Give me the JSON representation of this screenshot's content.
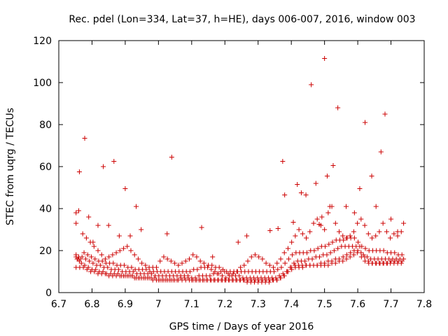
{
  "chart_data": {
    "type": "scatter",
    "title": "Rec. pdel (Lon=334, Lat=37, h=HE), days 006-007, 2016, window 003",
    "xlabel": "GPS time / Days of year 2016",
    "ylabel": "STEC from uqrg / TECUs",
    "xlim": [
      6.7,
      7.8
    ],
    "ylim": [
      0,
      120
    ],
    "xticks": [
      "6.7",
      "6.8",
      "6.9",
      "7",
      "7.1",
      "7.2",
      "7.3",
      "7.4",
      "7.5",
      "7.6",
      "7.7",
      "7.8"
    ],
    "yticks": [
      "0",
      "20",
      "40",
      "60",
      "80",
      "100",
      "120"
    ],
    "grid": false,
    "legend": "none",
    "marker": "plus",
    "color": "#cc0000",
    "series": [
      {
        "x": [
          6.752,
          6.758,
          6.762,
          6.768,
          6.778,
          6.789,
          6.8,
          6.811,
          6.822,
          6.833,
          6.844,
          6.856,
          6.867,
          6.878,
          6.889,
          6.9,
          6.911,
          6.922,
          6.933,
          6.944,
          6.956,
          6.967,
          6.978,
          6.989,
          7.0,
          7.011,
          7.022,
          7.033,
          7.044,
          7.056,
          7.067,
          7.078,
          7.089,
          7.1,
          7.111,
          7.122,
          7.133,
          7.144,
          7.156,
          7.167,
          7.178,
          7.189,
          7.2,
          7.211,
          7.222,
          7.233,
          7.244,
          7.256,
          7.267,
          7.278,
          7.289,
          7.3,
          7.311,
          7.322,
          7.333,
          7.344,
          7.356,
          7.367,
          7.378,
          7.389,
          7.4,
          7.411,
          7.422,
          7.433,
          7.444,
          7.456,
          7.467,
          7.478,
          7.489,
          7.5,
          7.511,
          7.522,
          7.533,
          7.544,
          7.556,
          7.567,
          7.578,
          7.589,
          7.6,
          7.611,
          7.622,
          7.633,
          7.644,
          7.656,
          7.667,
          7.678,
          7.689,
          7.7,
          7.711,
          7.722,
          7.733
        ],
        "y": [
          17,
          16,
          15,
          14,
          13,
          12,
          11,
          11,
          10,
          10,
          9,
          9,
          9,
          9,
          8,
          8,
          8,
          8,
          7,
          7,
          7,
          7,
          7,
          7,
          6,
          6,
          6,
          6,
          6,
          6,
          7,
          7,
          7,
          6,
          6,
          6,
          6,
          6,
          6,
          6,
          6,
          6,
          6,
          6,
          6,
          6,
          6,
          6,
          5,
          5,
          5,
          5,
          5,
          5,
          5,
          6,
          6,
          7,
          8,
          10,
          12,
          13,
          13,
          13,
          13,
          13,
          13,
          13,
          14,
          14,
          15,
          15,
          16,
          16,
          17,
          18,
          19,
          20,
          20,
          17,
          15,
          14,
          14,
          14,
          14,
          14,
          14,
          15,
          15,
          15,
          15
        ]
      },
      {
        "x": [
          6.752,
          6.76,
          6.77,
          6.781,
          6.792,
          6.803,
          6.814,
          6.825,
          6.836,
          6.847,
          6.858,
          6.869,
          6.88,
          6.891,
          6.902,
          6.913,
          6.924,
          6.935,
          6.946,
          6.957,
          6.968,
          6.979,
          6.99,
          7.001,
          7.012,
          7.023,
          7.034,
          7.045,
          7.056,
          7.067,
          7.078,
          7.089,
          7.1,
          7.111,
          7.122,
          7.133,
          7.144,
          7.155,
          7.166,
          7.177,
          7.188,
          7.199,
          7.21,
          7.221,
          7.232,
          7.243,
          7.254,
          7.265,
          7.276,
          7.287,
          7.298,
          7.309,
          7.32,
          7.331,
          7.342,
          7.353,
          7.364,
          7.375,
          7.386,
          7.397,
          7.408,
          7.419,
          7.43,
          7.441,
          7.452,
          7.463,
          7.474,
          7.485,
          7.496,
          7.507,
          7.518,
          7.529,
          7.54,
          7.551,
          7.562,
          7.573,
          7.584,
          7.595,
          7.606,
          7.617,
          7.628,
          7.639,
          7.65,
          7.661,
          7.672,
          7.683,
          7.694,
          7.705,
          7.716,
          7.727,
          7.738
        ],
        "y": [
          18,
          17,
          17,
          16,
          15,
          14,
          13,
          13,
          12,
          12,
          11,
          11,
          11,
          10,
          10,
          10,
          10,
          9,
          9,
          9,
          9,
          9,
          8,
          8,
          8,
          8,
          8,
          8,
          8,
          8,
          8,
          8,
          7,
          7,
          8,
          8,
          8,
          8,
          9,
          9,
          10,
          10,
          9,
          8,
          8,
          8,
          7,
          7,
          7,
          7,
          7,
          7,
          7,
          7,
          7,
          7,
          8,
          9,
          10,
          12,
          14,
          15,
          15,
          15,
          16,
          16,
          17,
          17,
          18,
          18,
          19,
          20,
          21,
          22,
          22,
          22,
          22,
          22,
          22,
          18,
          17,
          16,
          16,
          16,
          16,
          16,
          16,
          16,
          16,
          16,
          16
        ]
      },
      {
        "x": [
          6.755,
          6.765,
          6.776,
          6.787,
          6.798,
          6.809,
          6.82,
          6.831,
          6.842,
          6.853,
          6.864,
          6.875,
          6.886,
          6.897,
          6.908,
          6.919,
          6.93,
          6.941,
          6.952,
          6.963,
          6.974,
          6.985,
          6.996,
          7.007,
          7.018,
          7.029,
          7.04,
          7.051,
          7.062,
          7.073,
          7.084,
          7.095,
          7.106,
          7.117,
          7.128,
          7.139,
          7.15,
          7.161,
          7.172,
          7.183,
          7.194,
          7.205,
          7.216,
          7.227,
          7.238,
          7.249,
          7.26,
          7.271,
          7.282,
          7.293,
          7.304,
          7.315,
          7.326,
          7.337,
          7.348,
          7.359,
          7.37,
          7.381,
          7.392,
          7.403,
          7.414,
          7.425,
          7.436,
          7.447,
          7.458,
          7.469,
          7.48,
          7.491,
          7.502,
          7.513,
          7.524,
          7.535,
          7.546,
          7.557,
          7.568,
          7.579,
          7.59,
          7.601,
          7.612,
          7.623,
          7.634,
          7.645,
          7.656,
          7.667,
          7.678,
          7.689,
          7.7,
          7.711,
          7.722,
          7.733
        ],
        "y": [
          16,
          16,
          19,
          18,
          17,
          16,
          15,
          15,
          14,
          14,
          14,
          13,
          13,
          13,
          12,
          12,
          11,
          11,
          11,
          11,
          10,
          10,
          10,
          10,
          10,
          10,
          10,
          10,
          10,
          10,
          10,
          10,
          11,
          11,
          12,
          12,
          13,
          13,
          12,
          12,
          11,
          10,
          10,
          10,
          10,
          10,
          10,
          10,
          10,
          10,
          10,
          10,
          10,
          10,
          10,
          11,
          12,
          14,
          16,
          18,
          19,
          19,
          19,
          19,
          20,
          20,
          21,
          22,
          22,
          23,
          24,
          25,
          25,
          25,
          26,
          26,
          26,
          24,
          22,
          21,
          20,
          20,
          20,
          20,
          20,
          19,
          19,
          19,
          18,
          18
        ]
      },
      {
        "x": [
          6.752,
          6.763,
          6.774,
          6.785,
          6.796,
          6.807,
          6.818,
          6.829,
          6.84,
          6.851,
          6.862,
          6.873,
          6.884,
          6.895,
          6.906,
          6.917,
          6.928,
          6.939,
          6.95,
          6.961,
          6.972,
          6.983,
          6.994,
          7.005,
          7.016,
          7.027,
          7.038,
          7.049,
          7.06,
          7.071,
          7.082,
          7.093,
          7.104,
          7.115,
          7.126,
          7.137,
          7.148,
          7.159,
          7.17,
          7.181,
          7.192,
          7.203,
          7.214,
          7.225,
          7.236,
          7.247,
          7.258,
          7.269,
          7.28,
          7.291,
          7.302,
          7.313,
          7.324,
          7.335,
          7.346,
          7.357,
          7.368,
          7.379,
          7.39,
          7.401,
          7.412,
          7.423,
          7.434,
          7.445,
          7.456,
          7.467,
          7.478,
          7.489,
          7.5,
          7.511,
          7.522,
          7.533,
          7.544,
          7.555,
          7.566,
          7.577,
          7.588,
          7.599,
          7.61,
          7.621,
          7.632,
          7.643,
          7.654,
          7.665,
          7.676,
          7.687,
          7.698,
          7.709,
          7.72,
          7.731
        ],
        "y": [
          12,
          12,
          12,
          11,
          10,
          10,
          9,
          9,
          9,
          8,
          8,
          8,
          8,
          8,
          8,
          8,
          7,
          7,
          7,
          7,
          7,
          6,
          6,
          6,
          6,
          6,
          6,
          6,
          6,
          6,
          6,
          6,
          6,
          6,
          6,
          6,
          6,
          6,
          6,
          6,
          6,
          6,
          6,
          6,
          6,
          6,
          6,
          6,
          6,
          6,
          6,
          6,
          6,
          6,
          6,
          6,
          7,
          8,
          10,
          11,
          12,
          12,
          12,
          13,
          13,
          13,
          13,
          13,
          13,
          13,
          14,
          14,
          15,
          15,
          16,
          17,
          18,
          19,
          19,
          17,
          15,
          14,
          14,
          14,
          14,
          14,
          14,
          14,
          14,
          14
        ]
      },
      {
        "x": [
          6.752,
          6.76,
          6.772,
          6.783,
          6.795,
          6.806,
          6.818,
          6.829,
          6.84,
          6.851,
          6.862,
          6.873,
          6.884,
          6.895,
          6.906,
          6.917,
          6.928,
          6.939,
          6.95,
          6.961,
          6.972,
          6.983,
          6.994,
          7.005,
          7.016,
          7.027,
          7.038,
          7.049,
          7.06,
          7.071,
          7.082,
          7.093,
          7.104,
          7.115,
          7.126,
          7.137,
          7.148,
          7.159,
          7.17,
          7.181,
          7.192,
          7.203,
          7.214,
          7.225,
          7.236,
          7.247,
          7.258,
          7.269,
          7.28,
          7.291,
          7.302,
          7.313,
          7.324,
          7.335,
          7.346,
          7.357,
          7.368,
          7.379,
          7.39,
          7.401,
          7.412,
          7.423,
          7.434,
          7.445,
          7.456,
          7.467,
          7.478,
          7.489,
          7.5,
          7.511,
          7.522,
          7.533,
          7.544,
          7.555,
          7.566,
          7.577,
          7.588,
          7.599,
          7.61,
          7.621,
          7.632,
          7.643,
          7.654,
          7.665,
          7.676,
          7.687,
          7.698,
          7.709,
          7.72,
          7.731
        ],
        "y": [
          33,
          39,
          28,
          26,
          24,
          22,
          20,
          18,
          16,
          17,
          18,
          19,
          20,
          21,
          22,
          20,
          18,
          16,
          14,
          13,
          12,
          12,
          12,
          15,
          17,
          16,
          15,
          14,
          13,
          14,
          15,
          16,
          18,
          17,
          15,
          14,
          12,
          11,
          10,
          9,
          8,
          7,
          8,
          9,
          10,
          12,
          13,
          15,
          17,
          18,
          17,
          16,
          14,
          13,
          12,
          14,
          16,
          19,
          21,
          24,
          27,
          30,
          28,
          26,
          29,
          33,
          35,
          32,
          30,
          38,
          41,
          33,
          29,
          27,
          26,
          27,
          29,
          33,
          35,
          32,
          28,
          26,
          27,
          29,
          33,
          29,
          26,
          28,
          27,
          29
        ]
      },
      {
        "x": [
          6.752,
          6.762,
          6.778,
          6.79,
          6.803,
          6.818,
          6.834,
          6.85,
          6.866,
          6.882,
          6.9,
          6.915,
          6.933,
          6.948,
          7.026,
          7.04,
          7.13,
          7.163,
          7.24,
          7.266,
          7.336,
          7.36,
          7.374,
          7.38,
          7.406,
          7.418,
          7.43,
          7.444,
          7.46,
          7.474,
          7.484,
          7.492,
          7.5,
          7.508,
          7.516,
          7.526,
          7.54,
          7.565,
          7.59,
          7.606,
          7.622,
          7.642,
          7.655,
          7.67,
          7.682,
          7.7,
          7.72,
          7.738
        ],
        "y": [
          38,
          57.5,
          73.5,
          36,
          24,
          32,
          60,
          32,
          62.5,
          27,
          49.5,
          27,
          41,
          30,
          28,
          64.5,
          31,
          17,
          24,
          27,
          29.5,
          30.5,
          62.5,
          46.5,
          33.5,
          51.5,
          47.5,
          46.5,
          99,
          52,
          32.5,
          36,
          111.5,
          55.5,
          41,
          60.5,
          88,
          41,
          38,
          49.5,
          81,
          55.5,
          41,
          67,
          85,
          35,
          29,
          33
        ]
      }
    ]
  }
}
